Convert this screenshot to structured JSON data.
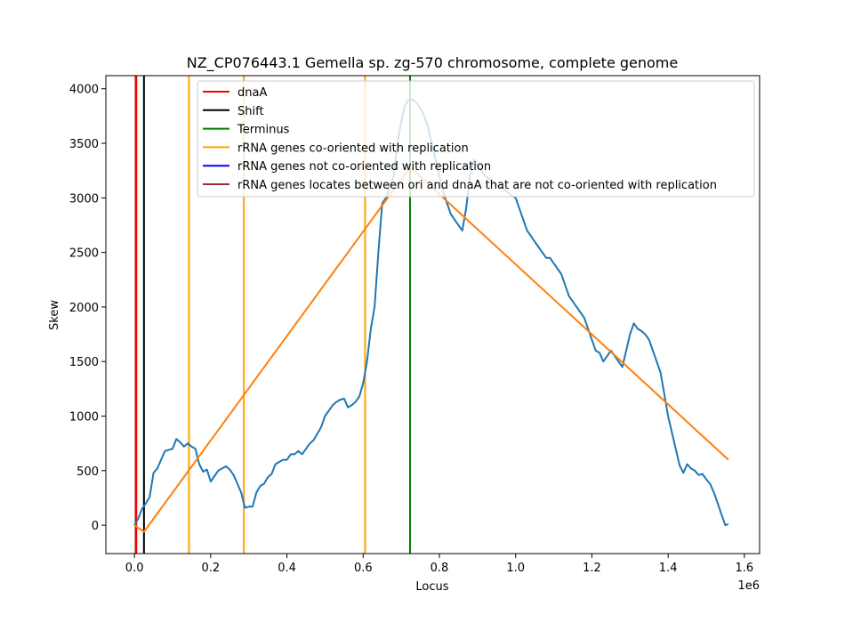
{
  "chart_data": {
    "type": "line",
    "title": "NZ_CP076443.1 Gemella sp. zg-570 chromosome, complete genome",
    "xlabel": "Locus",
    "ylabel": "Skew",
    "x_scale_label": "1e6",
    "xlim": [
      -75000,
      1640000
    ],
    "ylim": [
      -260,
      4120
    ],
    "x_ticks": [
      0,
      200000,
      400000,
      600000,
      800000,
      1000000,
      1200000,
      1400000,
      1600000
    ],
    "x_tick_labels": [
      "0.0",
      "0.2",
      "0.4",
      "0.6",
      "0.8",
      "1.0",
      "1.2",
      "1.4",
      "1.6"
    ],
    "y_ticks": [
      0,
      500,
      1000,
      1500,
      2000,
      2500,
      3000,
      3500,
      4000
    ],
    "y_tick_labels": [
      "0",
      "500",
      "1000",
      "1500",
      "2000",
      "2500",
      "3000",
      "3500",
      "4000"
    ],
    "legend_position": "top-right",
    "legend": [
      {
        "label": "dnaA",
        "color": "#ff0000"
      },
      {
        "label": "Shift",
        "color": "#000000"
      },
      {
        "label": "Terminus",
        "color": "#008000"
      },
      {
        "label": "rRNA genes co-oriented with replication",
        "color": "#ffa500"
      },
      {
        "label": "rRNA genes not co-oriented with replication",
        "color": "#0000ff"
      },
      {
        "label": "rRNA genes locates between ori and dnaA that are not co-oriented with replication",
        "color": "#a52a2a"
      }
    ],
    "vertical_lines": [
      {
        "x": 3000,
        "color": "#a52a2a"
      },
      {
        "x": 5000,
        "color": "#ff0000"
      },
      {
        "x": 25000,
        "color": "#000000"
      },
      {
        "x": 143000,
        "color": "#ffa500"
      },
      {
        "x": 287000,
        "color": "#ffa500"
      },
      {
        "x": 605000,
        "color": "#ffa500"
      },
      {
        "x": 723000,
        "color": "#008000"
      }
    ],
    "series": [
      {
        "color": "#1f77b4",
        "x": [
          0,
          10000,
          20000,
          30000,
          40000,
          50000,
          60000,
          70000,
          80000,
          90000,
          100000,
          110000,
          120000,
          130000,
          140000,
          150000,
          160000,
          170000,
          180000,
          190000,
          200000,
          210000,
          220000,
          230000,
          240000,
          250000,
          260000,
          270000,
          280000,
          290000,
          300000,
          310000,
          320000,
          330000,
          340000,
          350000,
          360000,
          370000,
          380000,
          390000,
          400000,
          410000,
          420000,
          430000,
          440000,
          450000,
          460000,
          470000,
          480000,
          490000,
          500000,
          510000,
          520000,
          530000,
          540000,
          550000,
          560000,
          570000,
          580000,
          590000,
          600000,
          610000,
          620000,
          630000,
          640000,
          650000,
          660000,
          670000,
          680000,
          690000,
          700000,
          710000,
          720000,
          730000,
          740000,
          750000,
          760000,
          770000,
          780000,
          790000,
          800000,
          810000,
          820000,
          830000,
          840000,
          850000,
          860000,
          870000,
          880000,
          890000,
          900000,
          910000,
          920000,
          930000,
          940000,
          950000,
          960000,
          970000,
          980000,
          990000,
          1000000,
          1010000,
          1020000,
          1030000,
          1040000,
          1050000,
          1060000,
          1070000,
          1080000,
          1090000,
          1100000,
          1110000,
          1120000,
          1130000,
          1140000,
          1150000,
          1160000,
          1170000,
          1180000,
          1190000,
          1200000,
          1210000,
          1220000,
          1230000,
          1240000,
          1250000,
          1260000,
          1270000,
          1280000,
          1290000,
          1300000,
          1310000,
          1320000,
          1330000,
          1340000,
          1350000,
          1360000,
          1370000,
          1380000,
          1390000,
          1400000,
          1410000,
          1420000,
          1430000,
          1440000,
          1450000,
          1460000,
          1470000,
          1480000,
          1490000,
          1500000,
          1510000,
          1520000,
          1530000,
          1540000,
          1550000,
          1558000
        ],
        "values": [
          0,
          60,
          150,
          200,
          260,
          480,
          520,
          600,
          680,
          690,
          700,
          790,
          760,
          720,
          750,
          720,
          700,
          560,
          490,
          510,
          400,
          450,
          500,
          520,
          540,
          510,
          460,
          380,
          300,
          160,
          170,
          170,
          300,
          360,
          380,
          440,
          470,
          560,
          580,
          600,
          600,
          650,
          650,
          680,
          650,
          700,
          750,
          780,
          840,
          900,
          1000,
          1050,
          1100,
          1130,
          1150,
          1160,
          1080,
          1100,
          1130,
          1180,
          1300,
          1500,
          1800,
          2000,
          2500,
          2950,
          3000,
          3100,
          3200,
          3500,
          3700,
          3850,
          3900,
          3900,
          3870,
          3820,
          3750,
          3650,
          3500,
          3350,
          3200,
          3050,
          2950,
          2850,
          2800,
          2750,
          2700,
          2900,
          3200,
          3350,
          3300,
          3250,
          3200,
          3180,
          3150,
          3120,
          3100,
          3080,
          3050,
          3020,
          3000,
          2900,
          2800,
          2700,
          2650,
          2600,
          2550,
          2500,
          2450,
          2450,
          2400,
          2350,
          2300,
          2200,
          2100,
          2050,
          2000,
          1950,
          1900,
          1800,
          1700,
          1600,
          1580,
          1500,
          1550,
          1600,
          1550,
          1500,
          1450,
          1600,
          1750,
          1850,
          1800,
          1780,
          1750,
          1700,
          1600,
          1500,
          1400,
          1200,
          1000,
          850,
          700,
          550,
          480,
          560,
          520,
          500,
          460,
          470,
          420,
          380,
          300,
          200,
          100,
          0,
          10
        ]
      },
      {
        "color": "#ff7f0e",
        "x": [
          0,
          25000,
          723000,
          1558000
        ],
        "values": [
          0,
          -60,
          3280,
          600
        ]
      }
    ]
  }
}
